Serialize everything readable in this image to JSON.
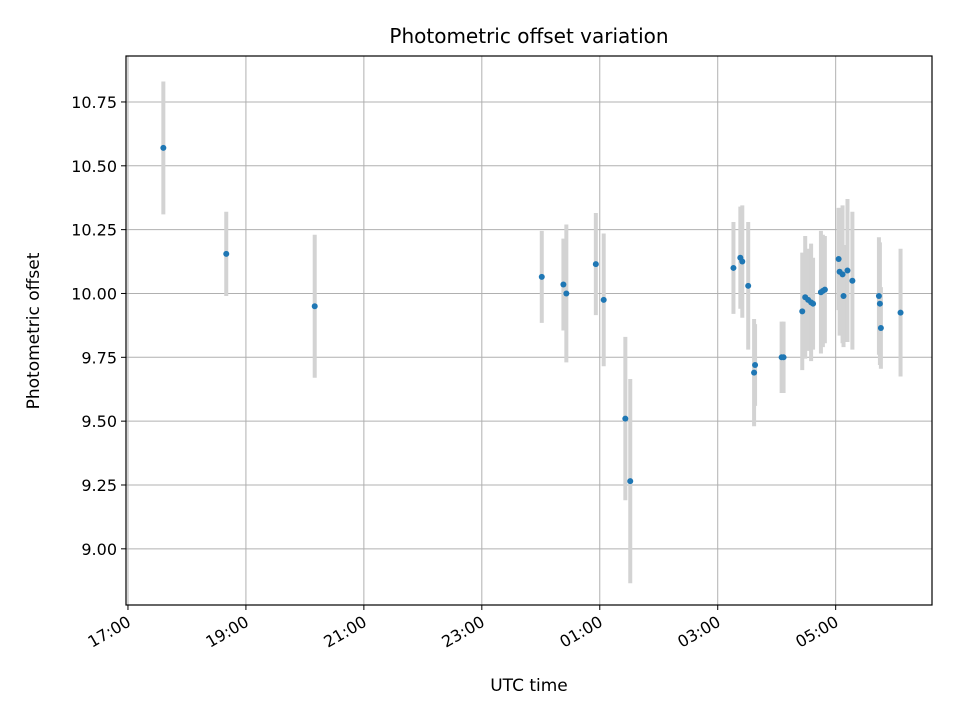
{
  "chart_data": {
    "type": "scatter",
    "title": "Photometric offset variation",
    "xlabel": "UTC time",
    "ylabel": "Photometric offset",
    "x_ticks": [
      "17:00",
      "19:00",
      "21:00",
      "23:00",
      "01:00",
      "03:00",
      "05:00"
    ],
    "y_ticks": [
      "9.00",
      "9.25",
      "9.50",
      "9.75",
      "10.00",
      "10.25",
      "10.50",
      "10.75"
    ],
    "xlim": [
      "16:58",
      "06:38"
    ],
    "ylim": [
      8.78,
      10.93
    ],
    "grid": true,
    "colors": {
      "point": "#1f77b4",
      "errorbar": "#d3d3d3",
      "grid": "#b0b0b0"
    },
    "points": [
      {
        "t": "17:36",
        "y": 10.57,
        "err": 0.26
      },
      {
        "t": "18:40",
        "y": 10.155,
        "err": 0.165
      },
      {
        "t": "20:10",
        "y": 9.95,
        "err": 0.28
      },
      {
        "t": "00:01",
        "y": 10.065,
        "err": 0.18
      },
      {
        "t": "00:23",
        "y": 10.035,
        "err": 0.18
      },
      {
        "t": "00:26",
        "y": 10.0,
        "err": 0.27
      },
      {
        "t": "00:56",
        "y": 10.115,
        "err": 0.2
      },
      {
        "t": "01:04",
        "y": 9.975,
        "err": 0.26
      },
      {
        "t": "01:26",
        "y": 9.51,
        "err": 0.32
      },
      {
        "t": "01:31",
        "y": 9.265,
        "err": 0.4
      },
      {
        "t": "03:16",
        "y": 10.1,
        "err": 0.18
      },
      {
        "t": "03:23",
        "y": 10.14,
        "err": 0.2
      },
      {
        "t": "03:25",
        "y": 10.125,
        "err": 0.22
      },
      {
        "t": "03:31",
        "y": 10.03,
        "err": 0.25
      },
      {
        "t": "03:37",
        "y": 9.69,
        "err": 0.21
      },
      {
        "t": "03:38",
        "y": 9.72,
        "err": 0.16
      },
      {
        "t": "04:05",
        "y": 9.75,
        "err": 0.14
      },
      {
        "t": "04:07",
        "y": 9.75,
        "err": 0.14
      },
      {
        "t": "04:26",
        "y": 9.93,
        "err": 0.23
      },
      {
        "t": "04:29",
        "y": 9.985,
        "err": 0.24
      },
      {
        "t": "04:32",
        "y": 9.975,
        "err": 0.2
      },
      {
        "t": "04:35",
        "y": 9.965,
        "err": 0.23
      },
      {
        "t": "04:37",
        "y": 9.96,
        "err": 0.18
      },
      {
        "t": "04:45",
        "y": 10.005,
        "err": 0.24
      },
      {
        "t": "04:47",
        "y": 10.01,
        "err": 0.22
      },
      {
        "t": "04:49",
        "y": 10.015,
        "err": 0.21
      },
      {
        "t": "05:03",
        "y": 10.135,
        "err": 0.2
      },
      {
        "t": "05:04",
        "y": 10.085,
        "err": 0.25
      },
      {
        "t": "05:07",
        "y": 10.075,
        "err": 0.27
      },
      {
        "t": "05:08",
        "y": 9.99,
        "err": 0.2
      },
      {
        "t": "05:12",
        "y": 10.09,
        "err": 0.28
      },
      {
        "t": "05:17",
        "y": 10.05,
        "err": 0.27
      },
      {
        "t": "05:44",
        "y": 9.99,
        "err": 0.23
      },
      {
        "t": "05:45",
        "y": 9.96,
        "err": 0.24
      },
      {
        "t": "05:46",
        "y": 9.865,
        "err": 0.16
      },
      {
        "t": "06:06",
        "y": 9.925,
        "err": 0.25
      }
    ]
  }
}
